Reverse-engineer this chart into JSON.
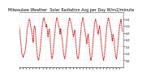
{
  "title": "Milwaukee Weather  Solar Radiation Avg per Day W/m2/minute",
  "title_fontsize": 3.5,
  "background_color": "#ffffff",
  "line_color": "#cc0000",
  "grid_color": "#cccccc",
  "ylim": [
    0.0,
    0.4
  ],
  "xlim": [
    0,
    155
  ],
  "line_width": 0.7,
  "values": [
    0.3,
    0.26,
    0.2,
    0.15,
    0.1,
    0.09,
    0.07,
    0.09,
    0.1,
    0.12,
    0.16,
    0.21,
    0.27,
    0.3,
    0.33,
    0.35,
    0.34,
    0.3,
    0.28,
    0.25,
    0.22,
    0.18,
    0.28,
    0.3,
    0.28,
    0.2,
    0.14,
    0.09,
    0.06,
    0.05,
    0.08,
    0.11,
    0.16,
    0.22,
    0.28,
    0.32,
    0.35,
    0.36,
    0.33,
    0.32,
    0.29,
    0.31,
    0.27,
    0.22,
    0.26,
    0.28,
    0.22,
    0.15,
    0.09,
    0.06,
    0.08,
    0.12,
    0.18,
    0.23,
    0.29,
    0.33,
    0.36,
    0.35,
    0.32,
    0.3,
    0.28,
    0.24,
    0.28,
    0.24,
    0.21,
    0.16,
    0.11,
    0.08,
    0.06,
    0.09,
    0.13,
    0.18,
    0.24,
    0.3,
    0.33,
    0.36,
    0.35,
    0.33,
    0.31,
    0.28,
    0.25,
    0.22,
    0.25,
    0.27,
    0.22,
    0.16,
    0.1,
    0.07,
    0.06,
    0.09,
    0.14,
    0.2,
    0.26,
    0.31,
    0.34,
    0.36,
    0.34,
    0.3,
    0.27,
    0.24,
    0.21,
    0.17,
    0.22,
    0.24,
    0.19,
    0.13,
    0.08,
    0.05,
    0.07,
    0.11,
    0.17,
    0.23,
    0.29,
    0.33,
    0.35,
    0.33,
    0.3,
    0.27,
    0.24,
    0.28,
    0.3,
    0.26,
    0.21,
    0.15,
    0.1,
    0.07,
    0.05,
    0.08,
    0.13,
    0.19,
    0.25,
    0.3,
    0.33,
    0.36,
    0.35,
    0.32,
    0.29,
    0.27,
    0.23,
    0.19,
    0.24,
    0.22,
    0.17,
    0.12,
    0.08,
    0.06,
    0.09,
    0.14,
    0.2,
    0.26,
    0.3,
    0.33,
    0.35,
    0.3,
    0.26
  ],
  "ytick_vals": [
    0.05,
    0.1,
    0.15,
    0.2,
    0.25,
    0.3,
    0.35
  ],
  "xtick_step": 5
}
